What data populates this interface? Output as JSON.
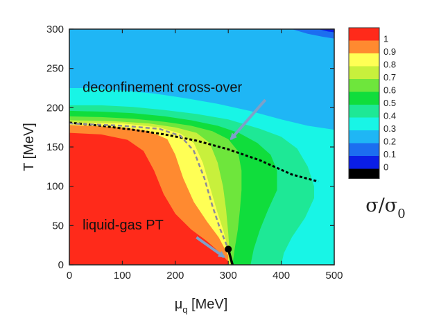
{
  "chart_data": {
    "type": "heatmap",
    "title": "",
    "xlabel": "μq [MeV]",
    "ylabel": "T [MeV]",
    "xlim": [
      0,
      500
    ],
    "ylim": [
      0,
      300
    ],
    "x_ticks": [
      0,
      100,
      200,
      300,
      400,
      500
    ],
    "y_ticks": [
      0,
      50,
      100,
      150,
      200,
      250,
      300
    ],
    "x_tick_labels": [
      "0",
      "100",
      "200",
      "300",
      "400",
      "500"
    ],
    "y_tick_labels": [
      "0",
      "50",
      "100",
      "150",
      "200",
      "250",
      "300"
    ],
    "xlabel_main": "μ",
    "xlabel_sub": "q",
    "xlabel_units": " [MeV]",
    "colorbar": {
      "label_main": "σ/σ",
      "label_sub": "0",
      "levels": [
        {
          "value": 1.0,
          "label": "1",
          "color": "#ff2a1a"
        },
        {
          "value": 0.9,
          "label": "0.9",
          "color": "#ff8a30"
        },
        {
          "value": 0.8,
          "label": "0.8",
          "color": "#ffff55"
        },
        {
          "value": 0.7,
          "label": "0.7",
          "color": "#c8f03c"
        },
        {
          "value": 0.6,
          "label": "0.6",
          "color": "#6ee63c"
        },
        {
          "value": 0.5,
          "label": "0.5",
          "color": "#10dd3c"
        },
        {
          "value": 0.4,
          "label": "0.4",
          "color": "#1ee896"
        },
        {
          "value": 0.3,
          "label": "0.3",
          "color": "#18f5e6"
        },
        {
          "value": 0.2,
          "label": "0.2",
          "color": "#1fb6f5"
        },
        {
          "value": 0.1,
          "label": "0.1",
          "color": "#1c6ef0"
        },
        {
          "value": 0.0,
          "label": "0",
          "color": "#0a1ee6"
        }
      ],
      "zero_band_color": "#000000"
    },
    "regions": [
      {
        "level": 0.2,
        "boundary": [
          [
            0,
            300
          ],
          [
            0,
            225
          ],
          [
            40,
            225
          ],
          [
            100,
            222
          ],
          [
            160,
            218
          ],
          [
            220,
            212
          ],
          [
            280,
            205
          ],
          [
            340,
            196
          ],
          [
            400,
            185
          ],
          [
            450,
            177
          ],
          [
            500,
            172
          ],
          [
            500,
            300
          ]
        ]
      },
      {
        "level": 0.1,
        "boundary": [
          [
            420,
            300
          ],
          [
            450,
            294
          ],
          [
            480,
            290
          ],
          [
            500,
            288
          ],
          [
            500,
            300
          ]
        ]
      },
      {
        "level": 0.0,
        "boundary": [
          [
            470,
            300
          ],
          [
            488,
            297
          ],
          [
            500,
            296
          ],
          [
            500,
            300
          ]
        ]
      },
      {
        "level": 0.4,
        "boundary": [
          [
            0,
            203
          ],
          [
            60,
            203
          ],
          [
            120,
            201
          ],
          [
            180,
            197
          ],
          [
            240,
            192
          ],
          [
            300,
            185
          ],
          [
            360,
            173
          ],
          [
            400,
            163
          ],
          [
            430,
            148
          ],
          [
            450,
            125
          ],
          [
            462,
            100
          ],
          [
            462,
            85
          ],
          [
            445,
            60
          ],
          [
            420,
            35
          ],
          [
            405,
            15
          ],
          [
            400,
            0
          ],
          [
            0,
            0
          ]
        ]
      },
      {
        "level": 0.5,
        "boundary": [
          [
            0,
            196
          ],
          [
            60,
            195
          ],
          [
            120,
            193
          ],
          [
            180,
            189
          ],
          [
            230,
            184
          ],
          [
            280,
            177
          ],
          [
            320,
            168
          ],
          [
            355,
            155
          ],
          [
            380,
            140
          ],
          [
            392,
            120
          ],
          [
            392,
            95
          ],
          [
            375,
            70
          ],
          [
            360,
            45
          ],
          [
            348,
            20
          ],
          [
            342,
            0
          ],
          [
            0,
            0
          ]
        ]
      },
      {
        "level": 0.6,
        "boundary": [
          [
            0,
            189
          ],
          [
            60,
            188
          ],
          [
            120,
            186
          ],
          [
            180,
            182
          ],
          [
            230,
            177
          ],
          [
            270,
            170
          ],
          [
            300,
            160
          ],
          [
            318,
            145
          ],
          [
            325,
            120
          ],
          [
            325,
            95
          ],
          [
            322,
            70
          ],
          [
            318,
            45
          ],
          [
            312,
            20
          ],
          [
            308,
            0
          ],
          [
            0,
            0
          ]
        ]
      },
      {
        "level": 0.7,
        "boundary": [
          [
            0,
            184
          ],
          [
            80,
            183
          ],
          [
            150,
            180
          ],
          [
            200,
            175
          ],
          [
            240,
            168
          ],
          [
            265,
            155
          ],
          [
            280,
            130
          ],
          [
            290,
            100
          ],
          [
            296,
            70
          ],
          [
            300,
            40
          ],
          [
            302,
            20
          ],
          [
            305,
            0
          ],
          [
            0,
            0
          ]
        ]
      },
      {
        "level": 0.8,
        "boundary": [
          [
            0,
            181
          ],
          [
            100,
            180
          ],
          [
            170,
            175
          ],
          [
            210,
            167
          ],
          [
            235,
            155
          ],
          [
            252,
            130
          ],
          [
            265,
            100
          ],
          [
            278,
            70
          ],
          [
            290,
            45
          ],
          [
            298,
            25
          ],
          [
            302,
            0
          ],
          [
            0,
            0
          ]
        ]
      },
      {
        "level": 0.9,
        "boundary": [
          [
            0,
            178
          ],
          [
            100,
            175
          ],
          [
            150,
            170
          ],
          [
            185,
            160
          ],
          [
            200,
            140
          ],
          [
            215,
            110
          ],
          [
            235,
            80
          ],
          [
            260,
            55
          ],
          [
            282,
            35
          ],
          [
            300,
            12
          ],
          [
            300,
            0
          ],
          [
            0,
            0
          ]
        ]
      },
      {
        "level": 1.0,
        "boundary": [
          [
            0,
            168
          ],
          [
            60,
            166
          ],
          [
            110,
            159
          ],
          [
            140,
            145
          ],
          [
            160,
            120
          ],
          [
            178,
            90
          ],
          [
            200,
            65
          ],
          [
            230,
            45
          ],
          [
            260,
            30
          ],
          [
            285,
            15
          ],
          [
            300,
            4
          ],
          [
            300,
            0
          ],
          [
            0,
            0
          ]
        ]
      }
    ],
    "series": [
      {
        "name": "deconfinement cross-over",
        "style": "dashed-black",
        "x": [
          0,
          60,
          120,
          180,
          240,
          300,
          360,
          420,
          470
        ],
        "y": [
          181,
          177,
          172,
          166,
          158,
          147,
          133,
          115,
          106
        ]
      },
      {
        "name": "liquid-gas phase boundary",
        "style": "dashed-gray",
        "x": [
          0,
          100,
          170,
          210,
          235,
          255,
          270,
          285,
          300
        ],
        "y": [
          180,
          177,
          173,
          164,
          145,
          110,
          75,
          45,
          20
        ]
      },
      {
        "name": "first-order line",
        "style": "solid-black",
        "x": [
          300,
          308
        ],
        "y": [
          20,
          0
        ]
      }
    ],
    "critical_point": {
      "x": 300,
      "y": 20
    },
    "annotations": [
      {
        "text": "deconfinement cross-over",
        "x": 25,
        "y": 220,
        "arrow_to": [
          305,
          160
        ],
        "arrow_from": [
          370,
          210
        ]
      },
      {
        "text": "liquid-gas PT",
        "x": 25,
        "y": 45,
        "arrow_to": [
          292,
          10
        ],
        "arrow_from": [
          240,
          35
        ]
      }
    ]
  }
}
